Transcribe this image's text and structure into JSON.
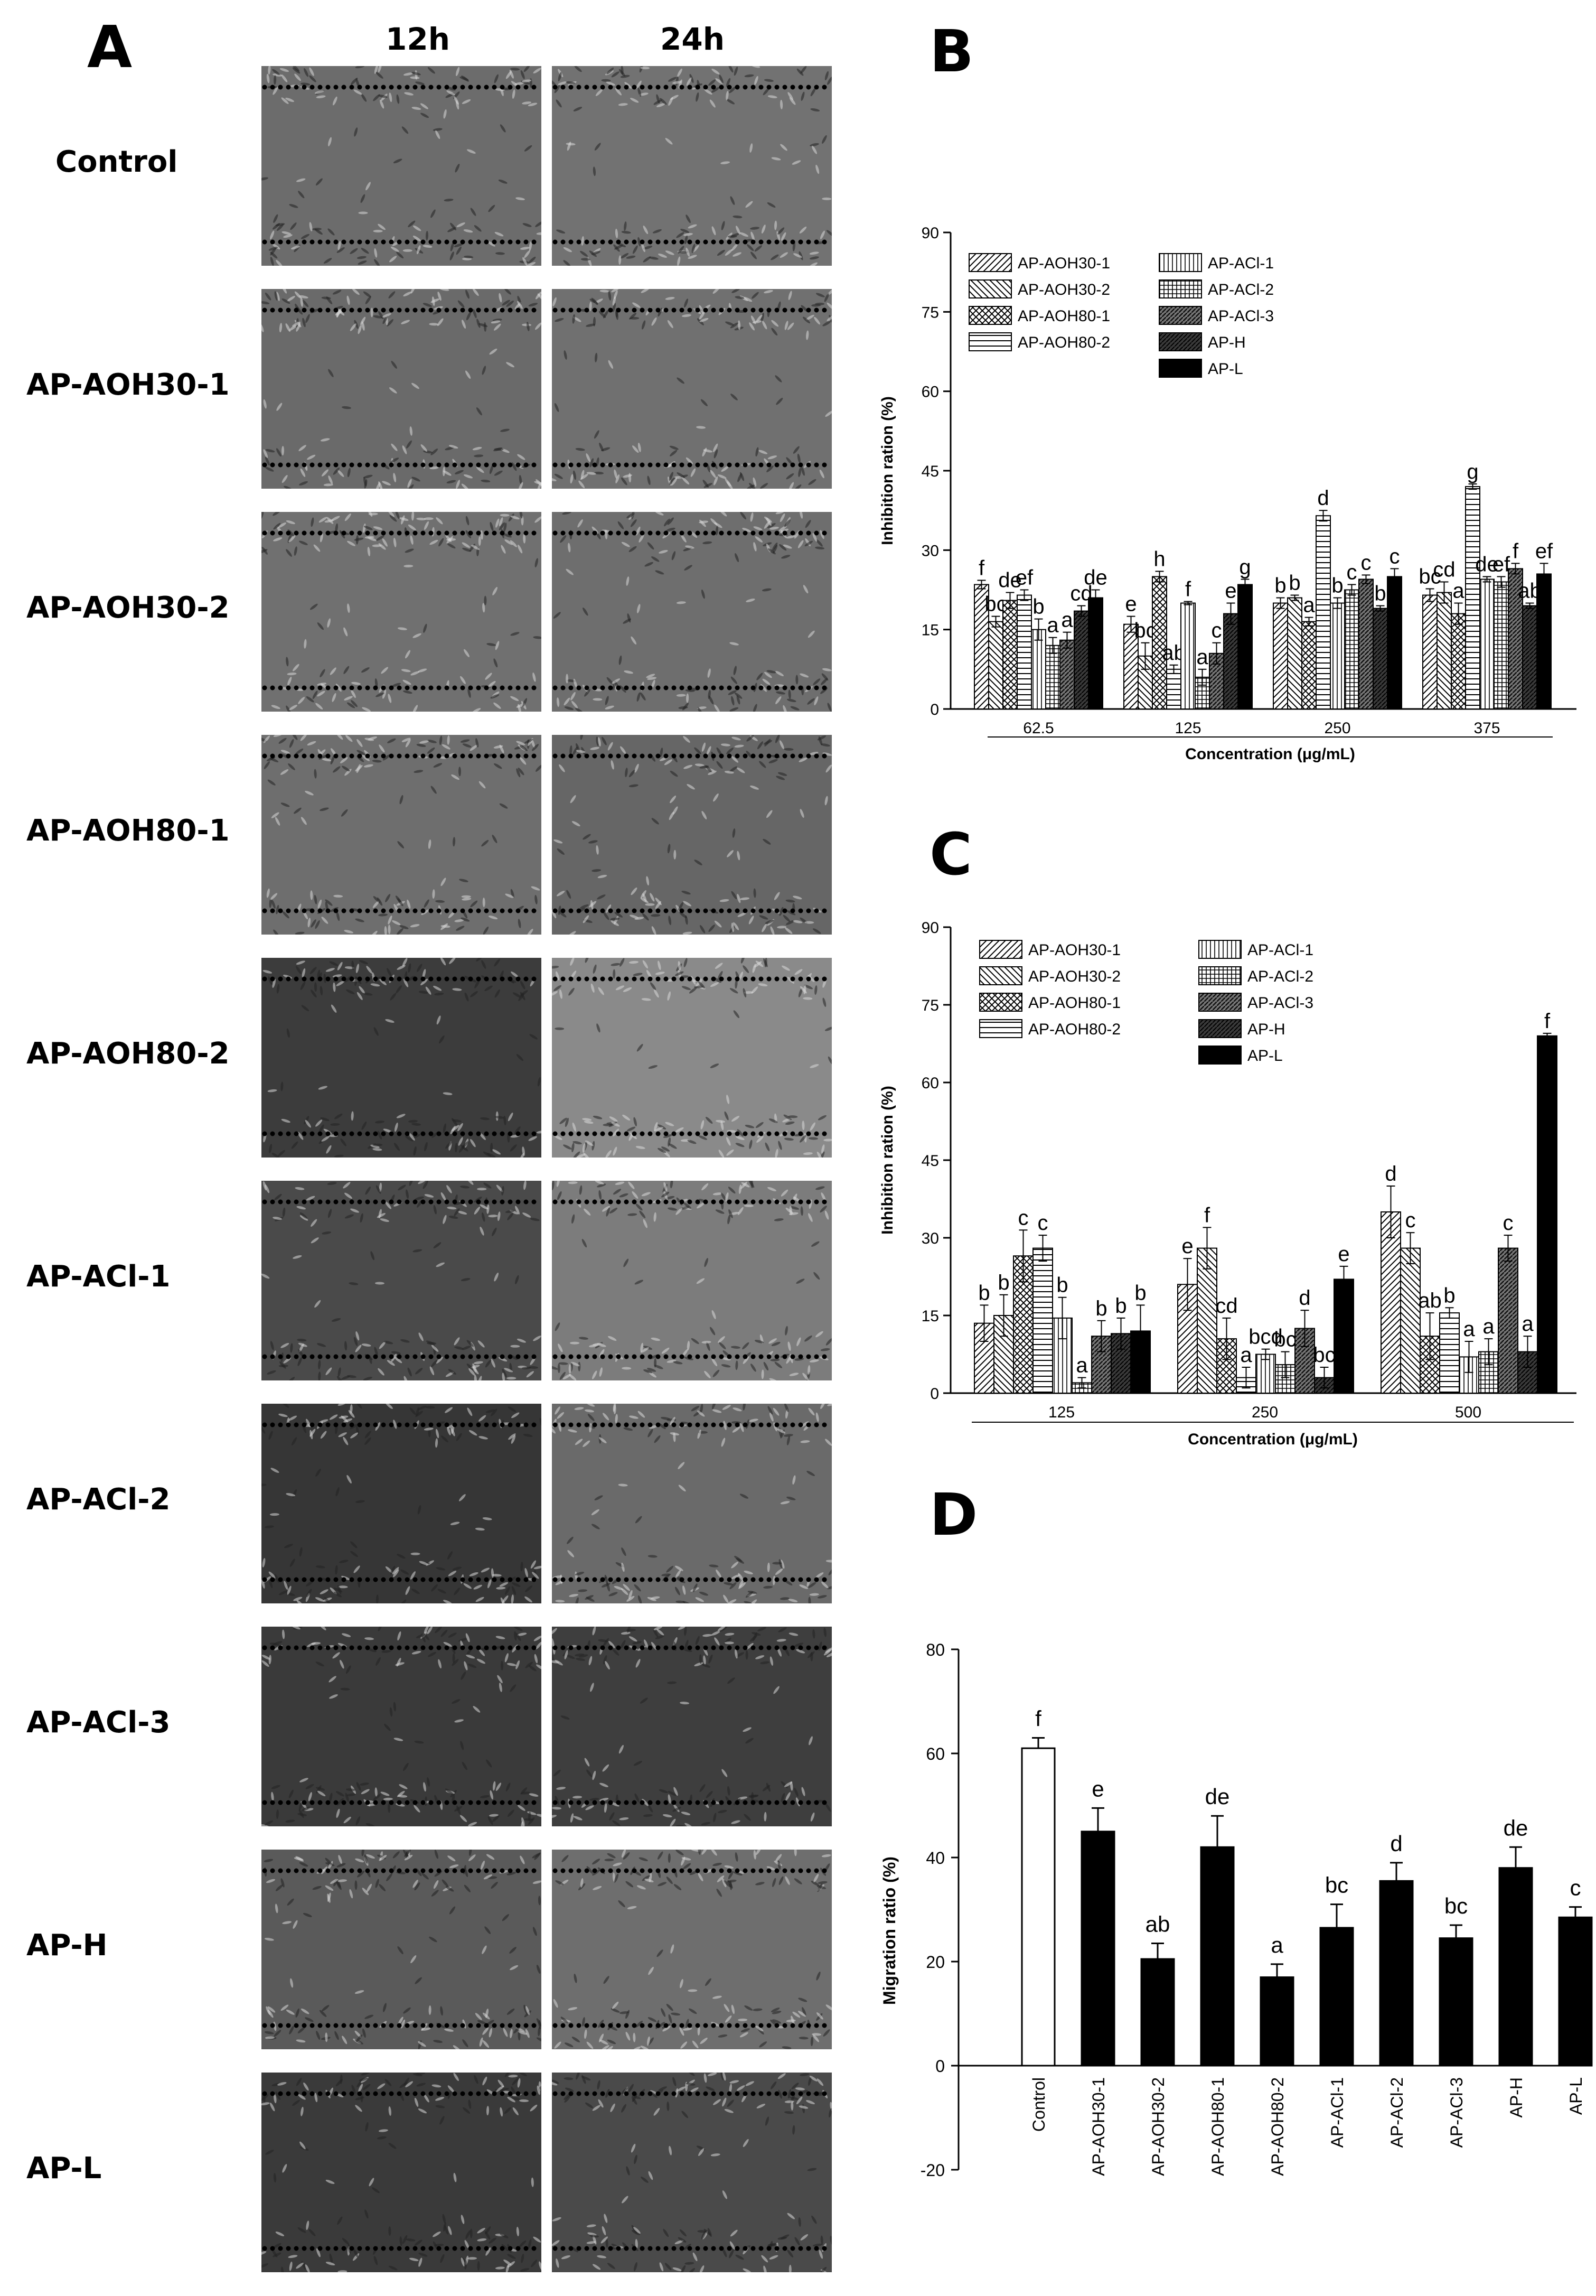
{
  "panel_a": {
    "letter": "A",
    "col_headers": [
      "12h",
      "24h"
    ],
    "rows": [
      {
        "label": "Control",
        "tones": [
          "#6c6c6c",
          "#727272"
        ]
      },
      {
        "label": "AP-AOH30-1",
        "tones": [
          "#6a6a6a",
          "#707070"
        ]
      },
      {
        "label": "AP-AOH30-2",
        "tones": [
          "#707070",
          "#6e6e6e"
        ]
      },
      {
        "label": "AP-AOH80-1",
        "tones": [
          "#6e6e6e",
          "#666666"
        ]
      },
      {
        "label": "AP-AOH80-2",
        "tones": [
          "#3c3c3c",
          "#8a8a8a"
        ]
      },
      {
        "label": "AP-ACl-1",
        "tones": [
          "#4a4a4a",
          "#7c7c7c"
        ]
      },
      {
        "label": "AP-ACl-2",
        "tones": [
          "#363636",
          "#6a6a6a"
        ]
      },
      {
        "label": "AP-ACl-3",
        "tones": [
          "#3a3a3a",
          "#3e3e3e"
        ]
      },
      {
        "label": "AP-H",
        "tones": [
          "#5a5a5a",
          "#6e6e6e"
        ]
      },
      {
        "label": "AP-L",
        "tones": [
          "#3a3a3a",
          "#4a4a4a"
        ]
      }
    ]
  },
  "chart_data": [
    {
      "panel": "B",
      "type": "bar",
      "xlabel": "Concentration (μg/mL)",
      "ylabel": "Inhibition ration (%)",
      "ylim": [
        0,
        90
      ],
      "yticks": [
        0,
        15,
        30,
        45,
        60,
        75,
        90
      ],
      "categories": [
        "62.5",
        "125",
        "250",
        "375"
      ],
      "legend_position": "top-left",
      "series": [
        {
          "name": "AP-AOH30-1",
          "pattern": "diag",
          "values": [
            23.5,
            16,
            20,
            21.5
          ],
          "errors": [
            0.8,
            1.5,
            1,
            1.2
          ],
          "letters": [
            "f",
            "e",
            "b",
            "bc"
          ]
        },
        {
          "name": "AP-AOH30-2",
          "pattern": "bdiag",
          "values": [
            16.5,
            10,
            21,
            22
          ],
          "errors": [
            1,
            2.5,
            0.5,
            2
          ],
          "letters": [
            "bc",
            "bc",
            "b",
            "cd"
          ]
        },
        {
          "name": "AP-AOH80-1",
          "pattern": "cross",
          "values": [
            20.5,
            25,
            16.5,
            18
          ],
          "errors": [
            1.5,
            1,
            0.8,
            2
          ],
          "letters": [
            "de",
            "h",
            "a",
            "a"
          ]
        },
        {
          "name": "AP-AOH80-2",
          "pattern": "hlines",
          "values": [
            21.5,
            7.5,
            36.5,
            42
          ],
          "errors": [
            1,
            0.8,
            1,
            0.5
          ],
          "letters": [
            "ef",
            "ab",
            "d",
            "g"
          ]
        },
        {
          "name": "AP-ACl-1",
          "pattern": "vlines",
          "values": [
            15,
            20,
            20,
            24.5
          ],
          "errors": [
            2,
            0.3,
            1,
            0.5
          ],
          "letters": [
            "b",
            "f",
            "b",
            "de"
          ]
        },
        {
          "name": "AP-ACl-2",
          "pattern": "grid",
          "values": [
            12,
            6,
            22.5,
            24
          ],
          "errors": [
            1.5,
            1.5,
            1,
            1
          ],
          "letters": [
            "a",
            "a",
            "c",
            "ef"
          ]
        },
        {
          "name": "AP-ACl-3",
          "pattern": "dense",
          "values": [
            13,
            10.5,
            24.5,
            26.5
          ],
          "errors": [
            1.5,
            2,
            0.8,
            1
          ],
          "letters": [
            "a",
            "c",
            "c",
            "f"
          ]
        },
        {
          "name": "AP-H",
          "pattern": "dark",
          "values": [
            18.5,
            18,
            19,
            19.5
          ],
          "errors": [
            1,
            2,
            0.5,
            0.5
          ],
          "letters": [
            "cd",
            "e",
            "b",
            "ab"
          ]
        },
        {
          "name": "AP-L",
          "pattern": "solid",
          "values": [
            21,
            23.5,
            25,
            25.5
          ],
          "errors": [
            1.5,
            1,
            1.5,
            2
          ],
          "letters": [
            "de",
            "g",
            "c",
            "ef"
          ]
        }
      ]
    },
    {
      "panel": "C",
      "type": "bar",
      "xlabel": "Concentration (μg/mL)",
      "ylabel": "Inhibition ration (%)",
      "ylim": [
        0,
        90
      ],
      "yticks": [
        0,
        15,
        30,
        45,
        60,
        75,
        90
      ],
      "categories": [
        "125",
        "250",
        "500"
      ],
      "legend_position": "top-left",
      "series": [
        {
          "name": "AP-AOH30-1",
          "pattern": "diag",
          "values": [
            13.5,
            21,
            35
          ],
          "errors": [
            3.5,
            5,
            5
          ],
          "letters": [
            "b",
            "e",
            "d"
          ]
        },
        {
          "name": "AP-AOH30-2",
          "pattern": "bdiag",
          "values": [
            15,
            28,
            28
          ],
          "errors": [
            4,
            4,
            3
          ],
          "letters": [
            "b",
            "f",
            "c"
          ]
        },
        {
          "name": "AP-AOH80-1",
          "pattern": "cross",
          "values": [
            26.5,
            10.5,
            11
          ],
          "errors": [
            5,
            4,
            4.5
          ],
          "letters": [
            "c",
            "cd",
            "ab"
          ]
        },
        {
          "name": "AP-AOH80-2",
          "pattern": "hlines",
          "values": [
            28,
            3,
            15.5
          ],
          "errors": [
            2.5,
            2,
            1
          ],
          "letters": [
            "c",
            "a",
            "b"
          ]
        },
        {
          "name": "AP-ACl-1",
          "pattern": "vlines",
          "values": [
            14.5,
            7.5,
            7
          ],
          "errors": [
            4,
            1,
            3
          ],
          "letters": [
            "b",
            "bcd",
            "a"
          ]
        },
        {
          "name": "AP-ACl-2",
          "pattern": "grid",
          "values": [
            2,
            5.5,
            8
          ],
          "errors": [
            1,
            2.5,
            2.5
          ],
          "letters": [
            "a",
            "bc",
            "a"
          ]
        },
        {
          "name": "AP-ACl-3",
          "pattern": "dense",
          "values": [
            11,
            12.5,
            28
          ],
          "errors": [
            3,
            3.5,
            2.5
          ],
          "letters": [
            "b",
            "d",
            "c"
          ]
        },
        {
          "name": "AP-H",
          "pattern": "dark",
          "values": [
            11.5,
            3,
            8
          ],
          "errors": [
            3,
            2,
            3
          ],
          "letters": [
            "b",
            "bc",
            "a"
          ]
        },
        {
          "name": "AP-L",
          "pattern": "solid",
          "values": [
            12,
            22,
            69
          ],
          "errors": [
            5,
            2.5,
            0.5
          ],
          "letters": [
            "b",
            "e",
            "f"
          ]
        }
      ]
    },
    {
      "panel": "D",
      "type": "bar",
      "xlabel": "",
      "ylabel": "Migration ratio (%)",
      "ylim": [
        -20,
        80
      ],
      "yticks": [
        -20,
        0,
        20,
        40,
        60,
        80
      ],
      "categories": [
        "Control",
        "AP-AOH30-1",
        "AP-AOH30-2",
        "AP-AOH80-1",
        "AP-AOH80-2",
        "AP-ACl-1",
        "AP-ACl-2",
        "AP-ACl-3",
        "AP-H",
        "AP-L"
      ],
      "values": [
        61,
        45,
        20.5,
        42,
        17,
        26.5,
        35.5,
        24.5,
        38,
        28.5
      ],
      "errors": [
        2,
        4.5,
        3,
        6,
        2.5,
        4.5,
        3.5,
        2.5,
        4,
        2
      ],
      "letters": [
        "f",
        "e",
        "ab",
        "de",
        "a",
        "bc",
        "d",
        "bc",
        "de",
        "c"
      ],
      "fills": [
        "#ffffff",
        "#000000",
        "#000000",
        "#000000",
        "#000000",
        "#000000",
        "#000000",
        "#000000",
        "#000000",
        "#000000"
      ]
    }
  ]
}
